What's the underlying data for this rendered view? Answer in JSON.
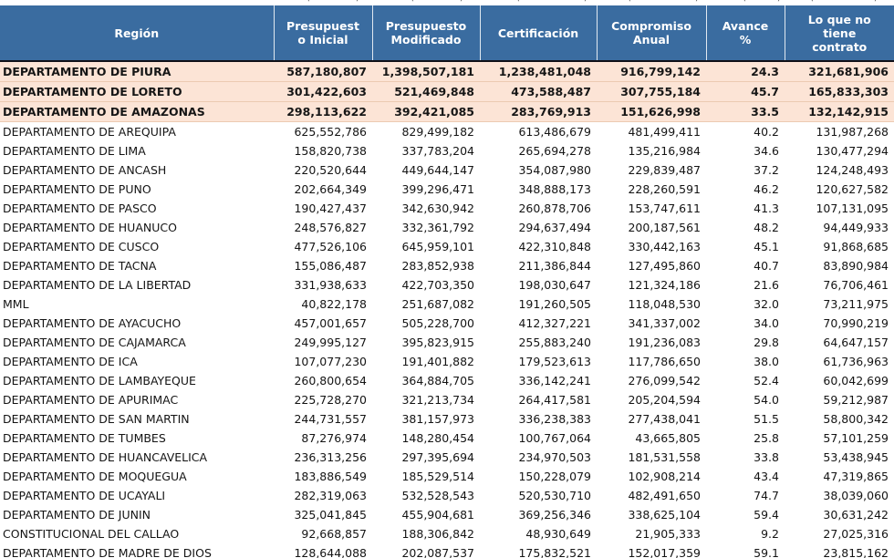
{
  "colors": {
    "header_bg": "#3A6CA0",
    "header_text": "#FFFFFF",
    "highlight_bg": "#FCE4D6",
    "header_divider": "#101018"
  },
  "decor": {
    "clipped_fragments": [
      "(",
      ")",
      "(",
      ")",
      "(",
      ")",
      "(",
      ")",
      "(",
      ")",
      "(",
      ")"
    ]
  },
  "chart_data": {
    "type": "table",
    "columns": [
      {
        "id": "region",
        "label_lines": [
          "Región"
        ]
      },
      {
        "id": "presupuesto-inicial",
        "label_lines": [
          "Presupuest",
          "o Inicial"
        ]
      },
      {
        "id": "presupuesto-modificado",
        "label_lines": [
          "Presupuesto",
          "Modificado"
        ]
      },
      {
        "id": "certificacion",
        "label_lines": [
          "Certificación"
        ]
      },
      {
        "id": "compromiso-anual",
        "label_lines": [
          "Compromiso",
          "Anual"
        ]
      },
      {
        "id": "avance-pct",
        "label_lines": [
          "Avance",
          "%"
        ]
      },
      {
        "id": "lo-que-no-tiene-contrato",
        "label_lines": [
          "Lo que no",
          "tiene",
          "contrato"
        ]
      }
    ],
    "rows": [
      {
        "region": "DEPARTAMENTO DE PIURA",
        "highlight": true,
        "values": [
          "587,180,807",
          "1,398,507,181",
          "1,238,481,048",
          "916,799,142",
          "24.3",
          "321,681,906"
        ]
      },
      {
        "region": "DEPARTAMENTO DE LORETO",
        "highlight": true,
        "values": [
          "301,422,603",
          "521,469,848",
          "473,588,487",
          "307,755,184",
          "45.7",
          "165,833,303"
        ]
      },
      {
        "region": "DEPARTAMENTO DE AMAZONAS",
        "highlight": true,
        "values": [
          "298,113,622",
          "392,421,085",
          "283,769,913",
          "151,626,998",
          "33.5",
          "132,142,915"
        ]
      },
      {
        "region": "DEPARTAMENTO DE AREQUIPA",
        "highlight": false,
        "values": [
          "625,552,786",
          "829,499,182",
          "613,486,679",
          "481,499,411",
          "40.2",
          "131,987,268"
        ]
      },
      {
        "region": "DEPARTAMENTO DE LIMA",
        "highlight": false,
        "values": [
          "158,820,738",
          "337,783,204",
          "265,694,278",
          "135,216,984",
          "34.6",
          "130,477,294"
        ]
      },
      {
        "region": "DEPARTAMENTO DE ANCASH",
        "highlight": false,
        "values": [
          "220,520,644",
          "449,644,147",
          "354,087,980",
          "229,839,487",
          "37.2",
          "124,248,493"
        ]
      },
      {
        "region": "DEPARTAMENTO DE PUNO",
        "highlight": false,
        "values": [
          "202,664,349",
          "399,296,471",
          "348,888,173",
          "228,260,591",
          "46.2",
          "120,627,582"
        ]
      },
      {
        "region": "DEPARTAMENTO DE PASCO",
        "highlight": false,
        "values": [
          "190,427,437",
          "342,630,942",
          "260,878,706",
          "153,747,611",
          "41.3",
          "107,131,095"
        ]
      },
      {
        "region": "DEPARTAMENTO DE HUANUCO",
        "highlight": false,
        "values": [
          "248,576,827",
          "332,361,792",
          "294,637,494",
          "200,187,561",
          "48.2",
          "94,449,933"
        ]
      },
      {
        "region": "DEPARTAMENTO DE CUSCO",
        "highlight": false,
        "values": [
          "477,526,106",
          "645,959,101",
          "422,310,848",
          "330,442,163",
          "45.1",
          "91,868,685"
        ]
      },
      {
        "region": "DEPARTAMENTO DE TACNA",
        "highlight": false,
        "values": [
          "155,086,487",
          "283,852,938",
          "211,386,844",
          "127,495,860",
          "40.7",
          "83,890,984"
        ]
      },
      {
        "region": "DEPARTAMENTO DE LA LIBERTAD",
        "highlight": false,
        "values": [
          "331,938,633",
          "422,703,350",
          "198,030,647",
          "121,324,186",
          "21.6",
          "76,706,461"
        ]
      },
      {
        "region": "MML",
        "highlight": false,
        "values": [
          "40,822,178",
          "251,687,082",
          "191,260,505",
          "118,048,530",
          "32.0",
          "73,211,975"
        ]
      },
      {
        "region": "DEPARTAMENTO DE AYACUCHO",
        "highlight": false,
        "values": [
          "457,001,657",
          "505,228,700",
          "412,327,221",
          "341,337,002",
          "34.0",
          "70,990,219"
        ]
      },
      {
        "region": "DEPARTAMENTO DE CAJAMARCA",
        "highlight": false,
        "values": [
          "249,995,127",
          "395,823,915",
          "255,883,240",
          "191,236,083",
          "29.8",
          "64,647,157"
        ]
      },
      {
        "region": "DEPARTAMENTO DE ICA",
        "highlight": false,
        "values": [
          "107,077,230",
          "191,401,882",
          "179,523,613",
          "117,786,650",
          "38.0",
          "61,736,963"
        ]
      },
      {
        "region": "DEPARTAMENTO DE LAMBAYEQUE",
        "highlight": false,
        "values": [
          "260,800,654",
          "364,884,705",
          "336,142,241",
          "276,099,542",
          "52.4",
          "60,042,699"
        ]
      },
      {
        "region": "DEPARTAMENTO DE APURIMAC",
        "highlight": false,
        "values": [
          "225,728,270",
          "321,213,734",
          "264,417,581",
          "205,204,594",
          "54.0",
          "59,212,987"
        ]
      },
      {
        "region": "DEPARTAMENTO DE SAN MARTIN",
        "highlight": false,
        "values": [
          "244,731,557",
          "381,157,973",
          "336,238,383",
          "277,438,041",
          "51.5",
          "58,800,342"
        ]
      },
      {
        "region": "DEPARTAMENTO DE TUMBES",
        "highlight": false,
        "values": [
          "87,276,974",
          "148,280,454",
          "100,767,064",
          "43,665,805",
          "25.8",
          "57,101,259"
        ]
      },
      {
        "region": "DEPARTAMENTO DE HUANCAVELICA",
        "highlight": false,
        "values": [
          "236,313,256",
          "297,395,694",
          "234,970,503",
          "181,531,558",
          "33.8",
          "53,438,945"
        ]
      },
      {
        "region": "DEPARTAMENTO DE MOQUEGUA",
        "highlight": false,
        "values": [
          "183,886,549",
          "185,529,514",
          "150,228,079",
          "102,908,214",
          "43.4",
          "47,319,865"
        ]
      },
      {
        "region": "DEPARTAMENTO DE UCAYALI",
        "highlight": false,
        "values": [
          "282,319,063",
          "532,528,543",
          "520,530,710",
          "482,491,650",
          "74.7",
          "38,039,060"
        ]
      },
      {
        "region": "DEPARTAMENTO DE JUNIN",
        "highlight": false,
        "values": [
          "325,041,845",
          "455,904,681",
          "369,256,346",
          "338,625,104",
          "59.4",
          "30,631,242"
        ]
      },
      {
        "region": "CONSTITUCIONAL DEL CALLAO",
        "highlight": false,
        "values": [
          "92,668,857",
          "188,306,842",
          "48,930,649",
          "21,905,333",
          "9.2",
          "27,025,316"
        ]
      },
      {
        "region": "DEPARTAMENTO DE MADRE DE DIOS",
        "highlight": false,
        "values": [
          "128,644,088",
          "202,087,537",
          "175,832,521",
          "152,017,359",
          "59.1",
          "23,815,162"
        ]
      }
    ]
  }
}
